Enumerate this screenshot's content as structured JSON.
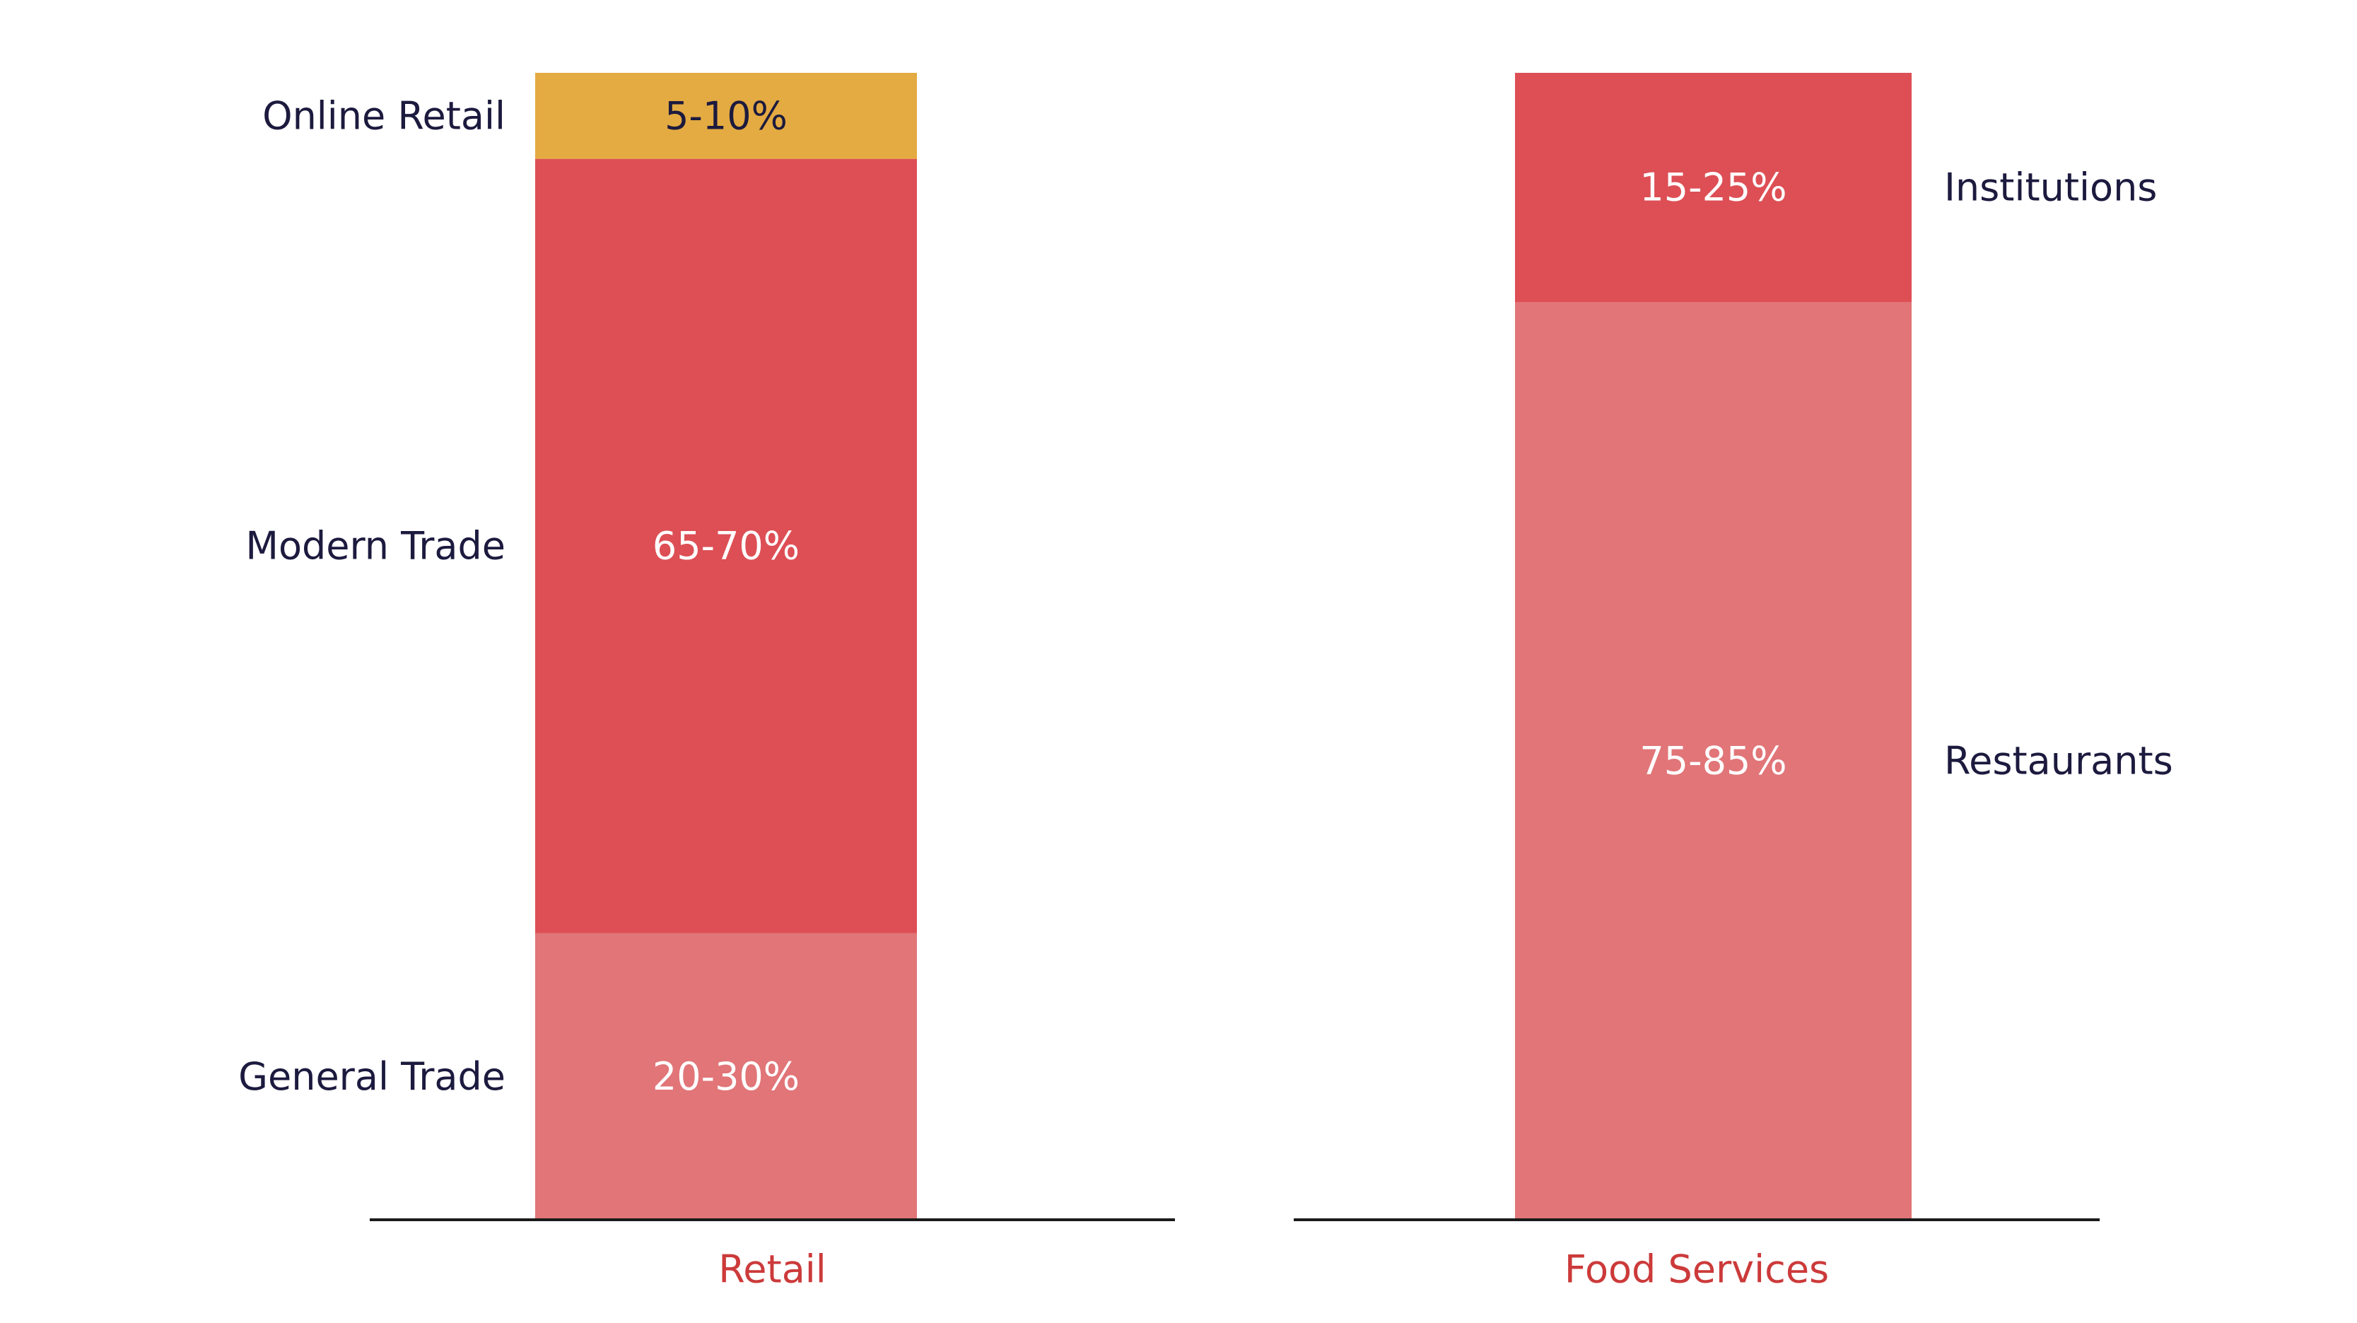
{
  "chart_data": [
    {
      "type": "bar",
      "stacked": true,
      "orientation": "vertical",
      "category": "Retail",
      "ylim": [
        0,
        100
      ],
      "grid": false,
      "segments": [
        {
          "name": "General Trade",
          "value_label": "20-30%",
          "share": 25,
          "color": "#e17578",
          "label_side": "left"
        },
        {
          "name": "Modern Trade",
          "value_label": "65-70%",
          "share": 67.5,
          "color": "#dd4f55",
          "label_side": "left"
        },
        {
          "name": "Online Retail",
          "value_label": "5-10%",
          "share": 7.5,
          "color": "#e4ab42",
          "label_side": "left"
        }
      ]
    },
    {
      "type": "bar",
      "stacked": true,
      "orientation": "vertical",
      "category": "Food Services",
      "ylim": [
        0,
        100
      ],
      "grid": false,
      "segments": [
        {
          "name": "Restaurants",
          "value_label": "75-85%",
          "share": 80,
          "color": "#e17578",
          "label_side": "right"
        },
        {
          "name": "Institutions",
          "value_label": "15-25%",
          "share": 20,
          "color": "#dd4f55",
          "label_side": "right"
        }
      ]
    }
  ],
  "colors": {
    "category_label": "#cc3a3a",
    "segment_name": "#1c1a3e",
    "value_label_light": "#ffffff",
    "value_label_dark": "#1c1a3e",
    "axis": "#1a1a1a"
  }
}
